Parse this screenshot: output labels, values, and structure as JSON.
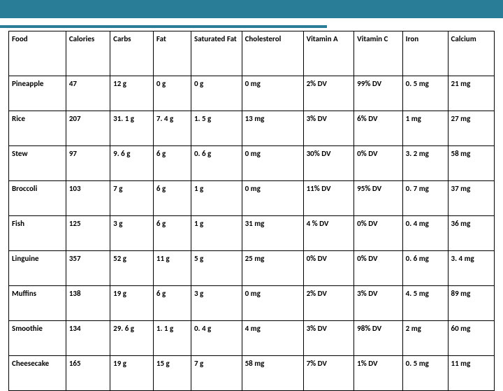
{
  "banner": {
    "top_color": "#2a7d96",
    "divider_color": "#2a7d96"
  },
  "nutrition_table": {
    "type": "table",
    "background_color": "#ffffff",
    "border_color": "#000000",
    "header_fontsize": 11,
    "cell_fontsize": 11,
    "font_weight": "bold",
    "columns": [
      "Food",
      "Calories",
      "Carbs",
      "Fat",
      "Saturated Fat",
      "Cholesterol",
      "Vitamin A",
      "Vitamin C",
      "Iron",
      "Calcium"
    ],
    "rows": [
      {
        "food": "Pineapple",
        "calories": "47",
        "carbs": "12 g",
        "fat": "0 g",
        "sat_fat": "0 g",
        "chol": "0 mg",
        "vit_a": "2% DV",
        "vit_c": "99% DV",
        "iron": "0. 5 mg",
        "calcium": "21 mg"
      },
      {
        "food": "Rice",
        "calories": "207",
        "carbs": "31. 1 g",
        "fat": "7. 4 g",
        "sat_fat": "1. 5 g",
        "chol": "13 mg",
        "vit_a": "3% DV",
        "vit_c": "6% DV",
        "iron": "1 mg",
        "calcium": "27 mg"
      },
      {
        "food": "Stew",
        "calories": "97",
        "carbs": "9. 6 g",
        "fat": "6 g",
        "sat_fat": "0. 6 g",
        "chol": "0 mg",
        "vit_a": "30% DV",
        "vit_c": "0% DV",
        "iron": "3. 2 mg",
        "calcium": "58 mg"
      },
      {
        "food": "Broccoli",
        "calories": "103",
        "carbs": "7 g",
        "fat": "6 g",
        "sat_fat": "1 g",
        "chol": "0 mg",
        "vit_a": "11% DV",
        "vit_c": "95% DV",
        "iron": "0. 7 mg",
        "calcium": "37 mg"
      },
      {
        "food": "Fish",
        "calories": "125",
        "carbs": "3 g",
        "fat": "6 g",
        "sat_fat": "1 g",
        "chol": "31 mg",
        "vit_a": "4 % DV",
        "vit_c": "0% DV",
        "iron": "0. 4 mg",
        "calcium": "36 mg"
      },
      {
        "food": "Linguine",
        "calories": "357",
        "carbs": "52 g",
        "fat": "11 g",
        "sat_fat": "5 g",
        "chol": "25 mg",
        "vit_a": "0% DV",
        "vit_c": "0% DV",
        "iron": "0. 6 mg",
        "calcium": "3. 4 mg"
      },
      {
        "food": "Muffins",
        "calories": "138",
        "carbs": "19 g",
        "fat": "6 g",
        "sat_fat": "3 g",
        "chol": "0 mg",
        "vit_a": "2% DV",
        "vit_c": "3% DV",
        "iron": "4. 5 mg",
        "calcium": "89 mg"
      },
      {
        "food": "Smoothie",
        "calories": "134",
        "carbs": "29. 6 g",
        "fat": "1. 1 g",
        "sat_fat": "0. 4 g",
        "chol": "4 mg",
        "vit_a": "3% DV",
        "vit_c": "98% DV",
        "iron": "2 mg",
        "calcium": "60 mg"
      },
      {
        "food": "Cheesecake",
        "calories": "165",
        "carbs": "19 g",
        "fat": "15 g",
        "sat_fat": "7 g",
        "chol": "58 mg",
        "vit_a": "7% DV",
        "vit_c": "1% DV",
        "iron": "0. 5 mg",
        "calcium": "11 mg"
      }
    ]
  }
}
